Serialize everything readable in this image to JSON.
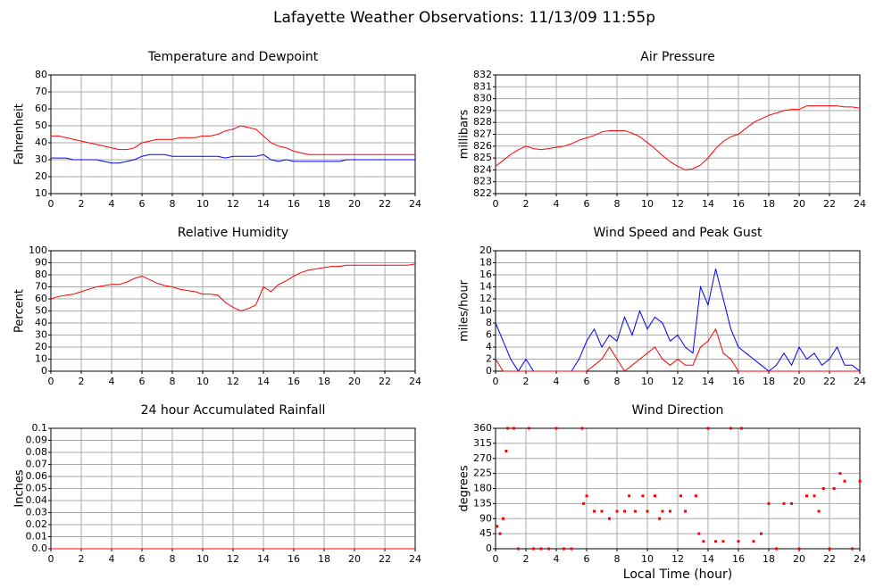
{
  "title": "Lafayette Weather Observations: 11/13/09 11:55p",
  "chart_data": [
    {
      "type": "line",
      "title": "Temperature and Dewpoint",
      "ylabel": "Fahrenheit",
      "x": [
        0,
        0.5,
        1,
        1.5,
        2,
        2.5,
        3,
        3.5,
        4,
        4.5,
        5,
        5.5,
        6,
        6.5,
        7,
        7.5,
        8,
        8.5,
        9,
        9.5,
        10,
        10.5,
        11,
        11.5,
        12,
        12.5,
        13,
        13.5,
        14,
        14.5,
        15,
        15.5,
        16,
        16.5,
        17,
        17.5,
        18,
        18.5,
        19,
        19.5,
        20,
        20.5,
        21,
        21.5,
        22,
        22.5,
        23,
        23.5,
        24
      ],
      "series": [
        {
          "color": "#ff0000",
          "values": [
            44,
            44,
            43,
            42,
            41,
            40,
            39,
            38,
            37,
            36,
            36,
            37,
            40,
            41,
            42,
            42,
            42,
            43,
            43,
            43,
            44,
            44,
            45,
            47,
            48,
            50,
            49,
            48,
            44,
            40,
            38,
            37,
            35,
            34,
            33,
            33,
            33,
            33,
            33,
            33,
            33,
            33,
            33,
            33,
            33,
            33,
            33,
            33,
            33
          ]
        },
        {
          "color": "#0000ff",
          "values": [
            31,
            31,
            31,
            30,
            30,
            30,
            30,
            29,
            28,
            28,
            29,
            30,
            32,
            33,
            33,
            33,
            32,
            32,
            32,
            32,
            32,
            32,
            32,
            31,
            32,
            32,
            32,
            32,
            33,
            30,
            29,
            30,
            29,
            29,
            29,
            29,
            29,
            29,
            29,
            30,
            30,
            30,
            30,
            30,
            30,
            30,
            30,
            30,
            30
          ]
        }
      ],
      "xlim": [
        0,
        24
      ],
      "xticks": [
        0,
        2,
        4,
        6,
        8,
        10,
        12,
        14,
        16,
        18,
        20,
        22,
        24
      ],
      "ylim": [
        10,
        80
      ],
      "yticks": [
        10,
        20,
        30,
        40,
        50,
        60,
        70,
        80
      ],
      "grid": true
    },
    {
      "type": "line",
      "title": "Air Pressure",
      "ylabel": "millibars",
      "x": [
        0,
        0.5,
        1,
        1.5,
        2,
        2.5,
        3,
        3.5,
        4,
        4.5,
        5,
        5.5,
        6,
        6.5,
        7,
        7.5,
        8,
        8.5,
        9,
        9.5,
        10,
        10.5,
        11,
        11.5,
        12,
        12.5,
        13,
        13.5,
        14,
        14.5,
        15,
        15.5,
        16,
        16.5,
        17,
        17.5,
        18,
        18.5,
        19,
        19.5,
        20,
        20.5,
        21,
        21.5,
        22,
        22.5,
        23,
        23.5,
        24
      ],
      "series": [
        {
          "color": "#ff0000",
          "values": [
            824.3,
            824.8,
            825.3,
            825.7,
            826,
            825.8,
            825.7,
            825.8,
            825.9,
            826,
            826.2,
            826.5,
            826.7,
            826.9,
            827.2,
            827.3,
            827.3,
            827.3,
            827.1,
            826.8,
            826.3,
            825.8,
            825.2,
            824.7,
            824.3,
            824,
            824.1,
            824.4,
            825,
            825.8,
            826.4,
            826.8,
            827,
            827.5,
            828,
            828.3,
            828.6,
            828.8,
            829,
            829.1,
            829.1,
            829.4,
            829.4,
            829.4,
            829.4,
            829.4,
            829.3,
            829.3,
            829.2
          ]
        }
      ],
      "xlim": [
        0,
        24
      ],
      "xticks": [
        0,
        2,
        4,
        6,
        8,
        10,
        12,
        14,
        16,
        18,
        20,
        22,
        24
      ],
      "ylim": [
        822,
        832
      ],
      "yticks": [
        822,
        823,
        824,
        825,
        826,
        827,
        828,
        829,
        830,
        831,
        832
      ],
      "grid": true
    },
    {
      "type": "line",
      "title": "Relative Humidity",
      "ylabel": "Percent",
      "x": [
        0,
        0.5,
        1,
        1.5,
        2,
        2.5,
        3,
        3.5,
        4,
        4.5,
        5,
        5.5,
        6,
        6.5,
        7,
        7.5,
        8,
        8.5,
        9,
        9.5,
        10,
        10.5,
        11,
        11.5,
        12,
        12.5,
        13,
        13.5,
        14,
        14.5,
        15,
        15.5,
        16,
        16.5,
        17,
        17.5,
        18,
        18.5,
        19,
        19.5,
        20,
        20.5,
        21,
        21.5,
        22,
        22.5,
        23,
        23.5,
        24
      ],
      "series": [
        {
          "color": "#ff0000",
          "values": [
            60,
            62,
            63,
            64,
            66,
            68,
            70,
            71,
            72,
            72,
            74,
            77,
            79,
            76,
            73,
            71,
            70,
            68,
            67,
            66,
            64,
            64,
            63,
            57,
            53,
            50,
            52,
            55,
            70,
            66,
            72,
            75,
            79,
            82,
            84,
            85,
            86,
            87,
            87,
            88,
            88,
            88,
            88,
            88,
            88,
            88,
            88,
            88,
            89
          ]
        }
      ],
      "xlim": [
        0,
        24
      ],
      "xticks": [
        0,
        2,
        4,
        6,
        8,
        10,
        12,
        14,
        16,
        18,
        20,
        22,
        24
      ],
      "ylim": [
        0,
        100
      ],
      "yticks": [
        0,
        10,
        20,
        30,
        40,
        50,
        60,
        70,
        80,
        90,
        100
      ],
      "grid": true
    },
    {
      "type": "line",
      "title": "Wind Speed and Peak Gust",
      "ylabel": "miles/hour",
      "x": [
        0,
        0.5,
        1,
        1.5,
        2,
        2.5,
        3,
        3.5,
        4,
        4.5,
        5,
        5.5,
        6,
        6.5,
        7,
        7.5,
        8,
        8.5,
        9,
        9.5,
        10,
        10.5,
        11,
        11.5,
        12,
        12.5,
        13,
        13.5,
        14,
        14.5,
        15,
        15.5,
        16,
        16.5,
        17,
        17.5,
        18,
        18.5,
        19,
        19.5,
        20,
        20.5,
        21,
        21.5,
        22,
        22.5,
        23,
        23.5,
        24
      ],
      "series": [
        {
          "color": "#0000ff",
          "values": [
            8,
            5,
            2,
            0,
            2,
            0,
            0,
            0,
            0,
            0,
            0,
            2,
            5,
            7,
            4,
            6,
            5,
            9,
            6,
            10,
            7,
            9,
            8,
            5,
            6,
            4,
            3,
            14,
            11,
            17,
            12,
            7,
            4,
            3,
            2,
            1,
            0,
            1,
            3,
            1,
            4,
            2,
            3,
            1,
            2,
            4,
            1,
            1,
            0
          ]
        },
        {
          "color": "#ff0000",
          "values": [
            2,
            0,
            0,
            0,
            0,
            0,
            0,
            0,
            0,
            0,
            0,
            0,
            0,
            1,
            2,
            4,
            2,
            0,
            1,
            2,
            3,
            4,
            2,
            1,
            2,
            1,
            1,
            4,
            5,
            7,
            3,
            2,
            0,
            0,
            0,
            0,
            0,
            0,
            0,
            0,
            0,
            0,
            0,
            0,
            0,
            0,
            0,
            0,
            0
          ]
        }
      ],
      "xlim": [
        0,
        24
      ],
      "xticks": [
        0,
        2,
        4,
        6,
        8,
        10,
        12,
        14,
        16,
        18,
        20,
        22,
        24
      ],
      "ylim": [
        0,
        20
      ],
      "yticks": [
        0,
        2,
        4,
        6,
        8,
        10,
        12,
        14,
        16,
        18,
        20
      ],
      "grid": true
    },
    {
      "type": "line",
      "title": "24 hour Accumulated Rainfall",
      "ylabel": "Inches",
      "x": [
        0,
        24
      ],
      "series": [
        {
          "color": "#ff0000",
          "values": [
            0,
            0
          ]
        }
      ],
      "xlim": [
        0,
        24
      ],
      "xticks": [
        0,
        2,
        4,
        6,
        8,
        10,
        12,
        14,
        16,
        18,
        20,
        22,
        24
      ],
      "ylim": [
        0,
        0.1
      ],
      "yticks": [
        {
          "value": 0,
          "label": "0.0"
        },
        0.01,
        0.02,
        0.03,
        0.04,
        0.05,
        0.06,
        0.07,
        0.08,
        0.09,
        0.1
      ],
      "grid": true
    },
    {
      "type": "scatter",
      "title": "Wind Direction",
      "ylabel": "degrees",
      "xlabel": "Local Time (hour)",
      "x": [
        0.1,
        0.3,
        0.5,
        0.7,
        0.8,
        1.2,
        1.5,
        2.2,
        2.5,
        3,
        3.5,
        4,
        4.5,
        5,
        5.7,
        5.8,
        6,
        6.5,
        7,
        7.5,
        8,
        8.5,
        8.8,
        9.2,
        9.7,
        10,
        10.5,
        10.8,
        11,
        11.5,
        12.2,
        12.5,
        13.2,
        13.4,
        13.7,
        14,
        14.5,
        15,
        15.5,
        16,
        16.2,
        17,
        17.5,
        18,
        18.5,
        19,
        19.5,
        20,
        20.5,
        21,
        21.3,
        21.6,
        22,
        22.3,
        22.7,
        23,
        23.5,
        24
      ],
      "series": [
        {
          "color": "#ff0000",
          "values": [
            67,
            45,
            90,
            292,
            360,
            360,
            0,
            360,
            0,
            0,
            0,
            360,
            0,
            0,
            360,
            135,
            158,
            112,
            112,
            90,
            112,
            112,
            158,
            112,
            158,
            112,
            158,
            90,
            112,
            112,
            158,
            112,
            158,
            45,
            22,
            360,
            22,
            22,
            360,
            22,
            360,
            22,
            45,
            135,
            0,
            135,
            135,
            0,
            158,
            158,
            112,
            180,
            0,
            180,
            225,
            202,
            0,
            202
          ]
        }
      ],
      "xlim": [
        0,
        24
      ],
      "xticks": [
        0,
        2,
        4,
        6,
        8,
        10,
        12,
        14,
        16,
        18,
        20,
        22,
        24
      ],
      "ylim": [
        0,
        360
      ],
      "yticks": [
        0,
        45,
        90,
        135,
        180,
        225,
        270,
        315,
        360
      ],
      "grid": true
    }
  ]
}
